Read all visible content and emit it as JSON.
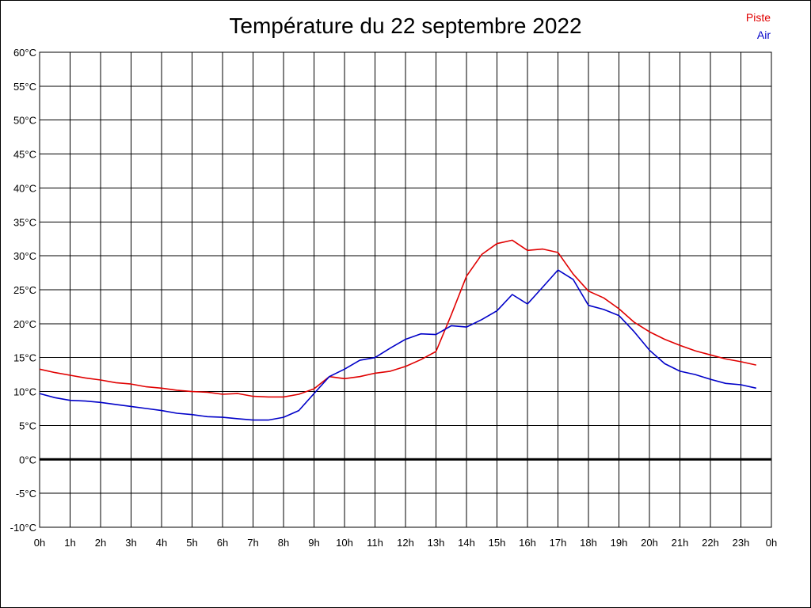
{
  "chart_data": {
    "type": "line",
    "title": "Température du 22 septembre 2022",
    "xlabel": "",
    "ylabel": "",
    "x_tick_labels": [
      "0h",
      "1h",
      "2h",
      "3h",
      "4h",
      "5h",
      "6h",
      "7h",
      "8h",
      "9h",
      "10h",
      "11h",
      "12h",
      "13h",
      "14h",
      "15h",
      "16h",
      "17h",
      "18h",
      "19h",
      "20h",
      "21h",
      "22h",
      "23h",
      "0h"
    ],
    "y_tick_labels": [
      "60°C",
      "55°C",
      "50°C",
      "45°C",
      "40°C",
      "35°C",
      "30°C",
      "25°C",
      "20°C",
      "15°C",
      "10°C",
      "5°C",
      "0°C",
      "-5°C",
      "-10°C"
    ],
    "y_ticks": [
      60,
      55,
      50,
      45,
      40,
      35,
      30,
      25,
      20,
      15,
      10,
      5,
      0,
      -5,
      -10
    ],
    "xlim": [
      0,
      24
    ],
    "ylim": [
      -10,
      60
    ],
    "grid": true,
    "legend_position": "top-right",
    "x_unit": "hours",
    "x": [
      0,
      0.5,
      1,
      1.5,
      2,
      2.5,
      3,
      3.5,
      4,
      4.5,
      5,
      5.5,
      6,
      6.5,
      7,
      7.5,
      8,
      8.5,
      9,
      9.5,
      10,
      10.5,
      11,
      11.5,
      12,
      12.5,
      13,
      13.5,
      14,
      14.5,
      15,
      15.5,
      16,
      16.5,
      17,
      17.5,
      18,
      18.5,
      19,
      19.5,
      20,
      20.5,
      21,
      21.5,
      22,
      22.5,
      23,
      23.5
    ],
    "series": [
      {
        "name": "Piste",
        "color": "#e00000",
        "values": [
          13.3,
          12.8,
          12.4,
          12.0,
          11.7,
          11.3,
          11.1,
          10.7,
          10.5,
          10.2,
          10.0,
          9.9,
          9.6,
          9.7,
          9.3,
          9.2,
          9.2,
          9.6,
          10.4,
          12.2,
          11.9,
          12.2,
          12.7,
          13.0,
          13.7,
          14.7,
          15.9,
          21.3,
          27.0,
          30.2,
          31.8,
          32.3,
          30.8,
          31.0,
          30.5,
          27.3,
          24.8,
          23.8,
          22.2,
          20.2,
          18.8,
          17.7,
          16.8,
          16.0,
          15.4,
          14.8,
          14.4,
          13.9
        ]
      },
      {
        "name": "Air",
        "color": "#0000c8",
        "values": [
          9.7,
          9.1,
          8.7,
          8.6,
          8.4,
          8.1,
          7.8,
          7.5,
          7.2,
          6.8,
          6.6,
          6.3,
          6.2,
          6.0,
          5.8,
          5.8,
          6.2,
          7.2,
          9.7,
          12.2,
          13.3,
          14.6,
          15.0,
          16.4,
          17.7,
          18.5,
          18.4,
          19.7,
          19.5,
          20.6,
          21.9,
          24.3,
          22.9,
          25.4,
          27.9,
          26.5,
          22.7,
          22.1,
          21.2,
          18.8,
          16.1,
          14.1,
          13.0,
          12.5,
          11.8,
          11.2,
          11.0,
          10.5
        ]
      }
    ]
  }
}
